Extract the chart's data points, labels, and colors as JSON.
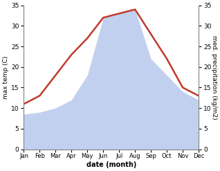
{
  "months": [
    "Jan",
    "Feb",
    "Mar",
    "Apr",
    "May",
    "Jun",
    "Jul",
    "Aug",
    "Sep",
    "Oct",
    "Nov",
    "Dec"
  ],
  "temperature": [
    11,
    13,
    18,
    23,
    27,
    32,
    33,
    34,
    28,
    22,
    15,
    13
  ],
  "precipitation": [
    8.5,
    9,
    10,
    12,
    18,
    32,
    33,
    34,
    22,
    18,
    14,
    12
  ],
  "temp_color": "#c0392b",
  "precip_fill_color": "#b8c8ee",
  "precip_fill_alpha": 0.85,
  "ylim": [
    0,
    35
  ],
  "ylabel_left": "max temp (C)",
  "ylabel_right": "med. precipitation (kg/m2)",
  "xlabel": "date (month)",
  "yticks": [
    0,
    5,
    10,
    15,
    20,
    25,
    30,
    35
  ],
  "background_color": "#ffffff",
  "line_width": 1.8,
  "title": ""
}
